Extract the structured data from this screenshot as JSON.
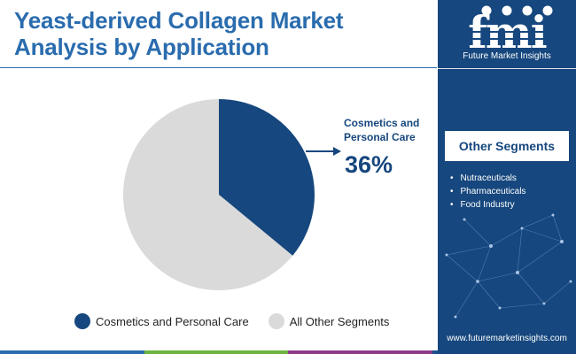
{
  "title_lines": [
    "Yeast-derived Collagen Market",
    "Analysis by Application"
  ],
  "chart_data": {
    "type": "pie",
    "title": "Yeast-derived Collagen Market Analysis by Application",
    "slices": [
      {
        "label": "Cosmetics and Personal Care",
        "value": 36,
        "color": "#16477e"
      },
      {
        "label": "All Other Segments",
        "value": 64,
        "color": "#dadada"
      }
    ],
    "start_angle_deg": 0,
    "direction": "clockwise",
    "legend_position": "bottom"
  },
  "callout": {
    "label_lines": [
      "Cosmetics and",
      "Personal Care"
    ],
    "value": "36%"
  },
  "legend": [
    {
      "label": "Cosmetics and Personal Care",
      "color": "#16477e"
    },
    {
      "label": "All Other Segments",
      "color": "#dadada"
    }
  ],
  "sidebar": {
    "logo_text": "fmi",
    "logo_tagline": "Future Market Insights",
    "segments_title": "Other Segments",
    "segments": [
      "Nutraceuticals",
      "Pharmaceuticals",
      "Food Industry"
    ],
    "website": "www.futuremarketinsights.com"
  },
  "colors": {
    "title": "#2a6cae",
    "accent": "#16477e",
    "bottom_bar": [
      "#2a6cae",
      "#6cb33f",
      "#8e3a8a",
      "#1b4f8c"
    ]
  }
}
